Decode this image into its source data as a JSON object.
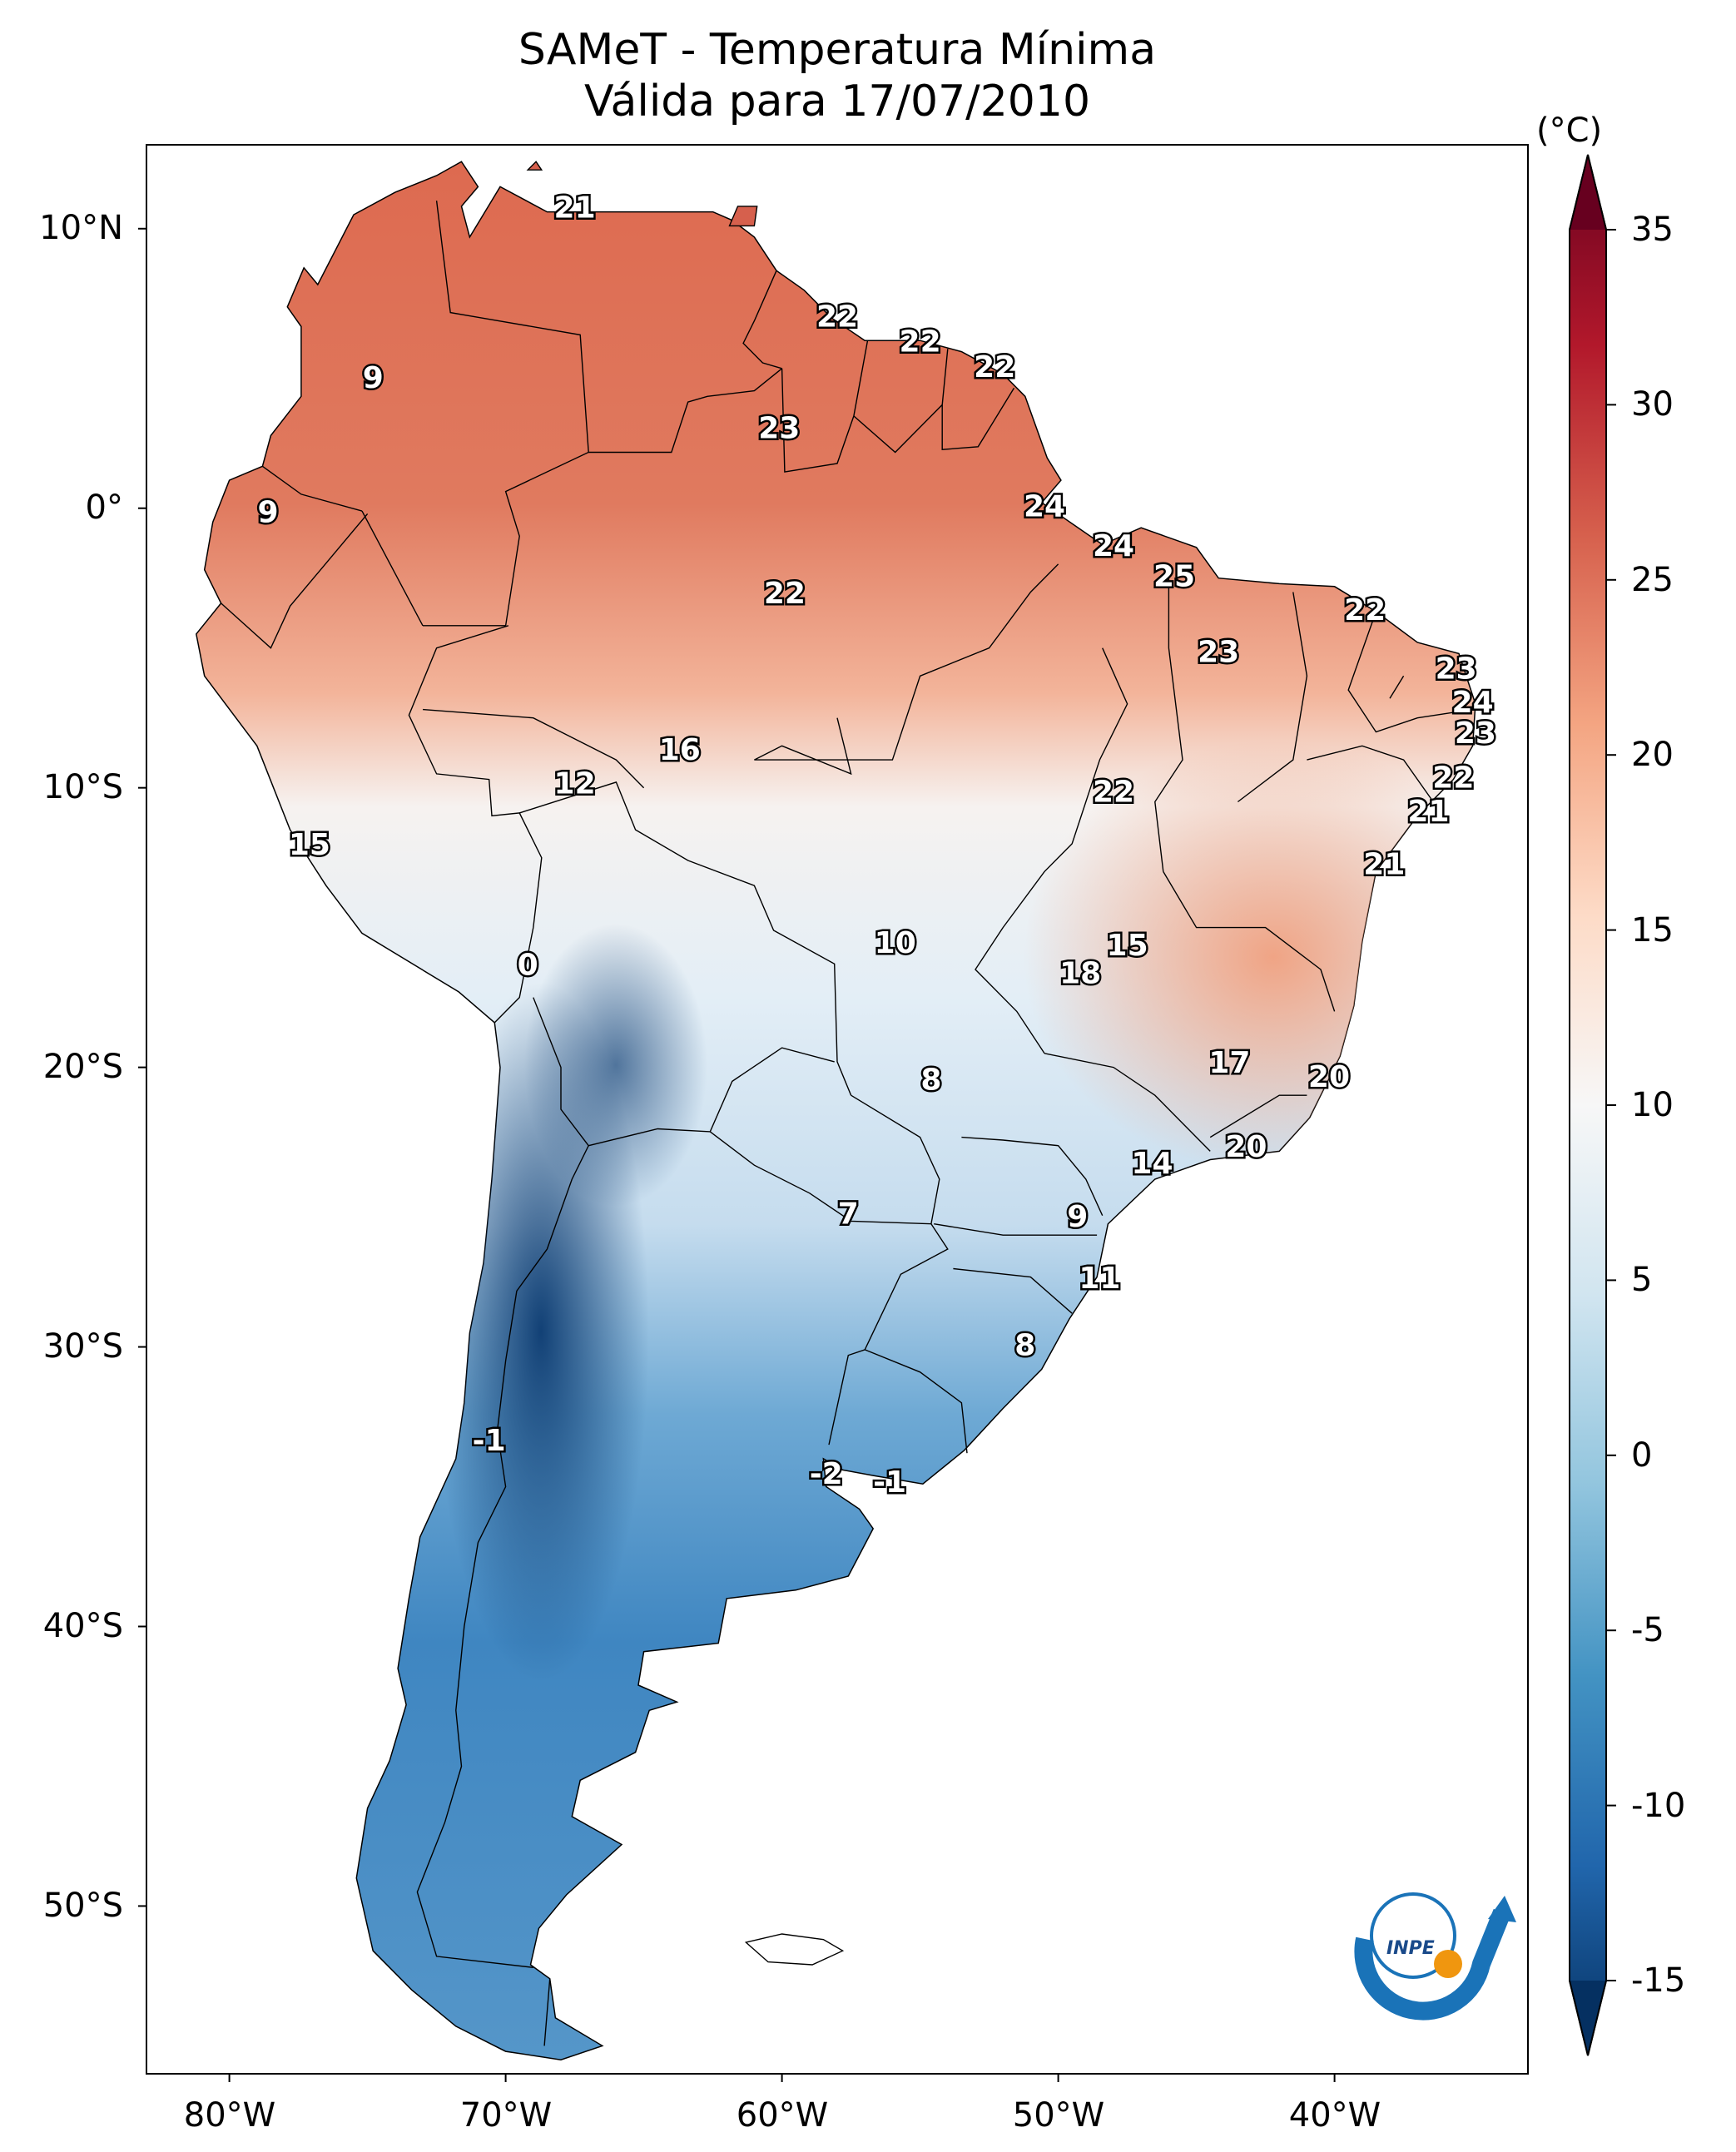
{
  "title": {
    "line1": "SAMeT - Temperatura Mínima",
    "line2": "Válida para 17/07/2010"
  },
  "axes": {
    "lat_ticks": [
      "10°N",
      "0°",
      "10°S",
      "20°S",
      "30°S",
      "40°S",
      "50°S"
    ],
    "lon_ticks": [
      "80°W",
      "70°W",
      "60°W",
      "50°W",
      "40°W"
    ],
    "lon_range": [
      -83,
      -33
    ],
    "lat_range": [
      -56,
      13
    ]
  },
  "colorbar": {
    "unit": "(°C)",
    "ticks": [
      "35",
      "30",
      "25",
      "20",
      "15",
      "10",
      "5",
      "0",
      "-5",
      "-10",
      "-15"
    ],
    "tick_values": [
      35,
      30,
      25,
      20,
      15,
      10,
      5,
      0,
      -5,
      -10,
      -15
    ],
    "range": [
      -15,
      35
    ],
    "colormap": "RdBu_r",
    "colors": [
      "#053061",
      "#2166ac",
      "#4393c3",
      "#92c5de",
      "#d1e5f0",
      "#f7f7f7",
      "#fddbc7",
      "#f4a582",
      "#d6604d",
      "#b2182b",
      "#67001f"
    ]
  },
  "logo": {
    "text": "INPE"
  },
  "chart_data": {
    "type": "heatmap",
    "variable": "Temperatura Mínima",
    "units": "°C",
    "date": "17/07/2010",
    "station_values": [
      {
        "lon": -67.5,
        "lat": 10.7,
        "value": "21"
      },
      {
        "lon": -58.0,
        "lat": 6.8,
        "value": "22"
      },
      {
        "lon": -55.0,
        "lat": 5.9,
        "value": "22"
      },
      {
        "lon": -52.3,
        "lat": 5.0,
        "value": "22"
      },
      {
        "lon": -60.1,
        "lat": 2.8,
        "value": "23"
      },
      {
        "lon": -74.8,
        "lat": 4.6,
        "value": "9"
      },
      {
        "lon": -78.6,
        "lat": -0.2,
        "value": "9"
      },
      {
        "lon": -50.5,
        "lat": 0.0,
        "value": "24"
      },
      {
        "lon": -48.0,
        "lat": -1.4,
        "value": "24"
      },
      {
        "lon": -45.8,
        "lat": -2.5,
        "value": "25"
      },
      {
        "lon": -59.9,
        "lat": -3.1,
        "value": "22"
      },
      {
        "lon": -38.9,
        "lat": -3.7,
        "value": "22"
      },
      {
        "lon": -44.2,
        "lat": -5.2,
        "value": "23"
      },
      {
        "lon": -35.6,
        "lat": -5.8,
        "value": "23"
      },
      {
        "lon": -35.0,
        "lat": -7.0,
        "value": "24"
      },
      {
        "lon": -34.9,
        "lat": -8.1,
        "value": "23"
      },
      {
        "lon": -63.7,
        "lat": -8.7,
        "value": "16"
      },
      {
        "lon": -67.5,
        "lat": -9.9,
        "value": "12"
      },
      {
        "lon": -48.0,
        "lat": -10.2,
        "value": "22"
      },
      {
        "lon": -35.7,
        "lat": -9.7,
        "value": "22"
      },
      {
        "lon": -36.6,
        "lat": -10.9,
        "value": "21"
      },
      {
        "lon": -77.1,
        "lat": -12.1,
        "value": "15"
      },
      {
        "lon": -38.2,
        "lat": -12.8,
        "value": "21"
      },
      {
        "lon": -55.9,
        "lat": -15.6,
        "value": "10"
      },
      {
        "lon": -47.5,
        "lat": -15.7,
        "value": "15"
      },
      {
        "lon": -49.2,
        "lat": -16.7,
        "value": "18"
      },
      {
        "lon": -69.2,
        "lat": -16.4,
        "value": "0"
      },
      {
        "lon": -43.8,
        "lat": -19.9,
        "value": "17"
      },
      {
        "lon": -40.2,
        "lat": -20.4,
        "value": "20"
      },
      {
        "lon": -54.6,
        "lat": -20.5,
        "value": "8"
      },
      {
        "lon": -43.2,
        "lat": -22.9,
        "value": "20"
      },
      {
        "lon": -46.6,
        "lat": -23.5,
        "value": "14"
      },
      {
        "lon": -49.3,
        "lat": -25.4,
        "value": "9"
      },
      {
        "lon": -57.6,
        "lat": -25.3,
        "value": "7"
      },
      {
        "lon": -48.5,
        "lat": -27.6,
        "value": "11"
      },
      {
        "lon": -51.2,
        "lat": -30.0,
        "value": "8"
      },
      {
        "lon": -70.6,
        "lat": -33.4,
        "value": "-1"
      },
      {
        "lon": -58.4,
        "lat": -34.6,
        "value": "-2"
      },
      {
        "lon": -56.1,
        "lat": -34.9,
        "value": "-1"
      }
    ]
  }
}
